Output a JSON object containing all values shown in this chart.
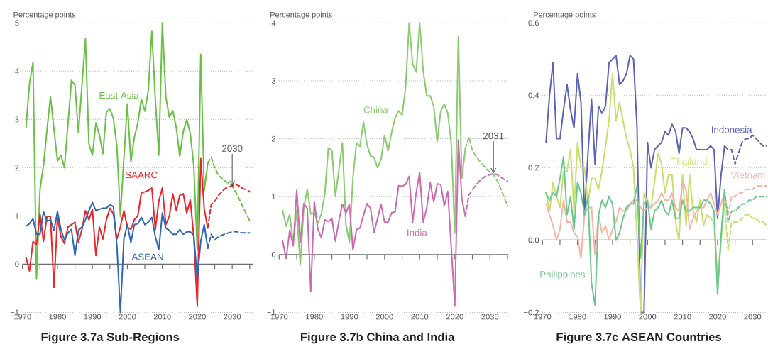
{
  "chart_data": [
    {
      "type": "line",
      "title": "Figure 3.7a Sub-Regions",
      "ylabel": "Percentage points",
      "xlim": [
        1970,
        2036
      ],
      "ylim": [
        -1,
        5
      ],
      "xticks": [
        1970,
        {
          "value": 1975,
          "label": null
        },
        1980,
        {
          "value": 1985,
          "label": null
        },
        1990,
        {
          "value": 1995,
          "label": null
        },
        2000,
        {
          "value": 2005,
          "label": null
        },
        2010,
        {
          "value": 2015,
          "label": null
        },
        2020,
        {
          "value": 2025,
          "label": null
        },
        2030,
        {
          "value": 2035,
          "label": null
        }
      ],
      "yticks": [
        {
          "value": -1,
          "label": "−1"
        },
        0,
        1,
        2,
        3,
        4,
        5
      ],
      "grid": "y",
      "marker": "none",
      "annotations": [
        {
          "text": "2030",
          "x": 2030,
          "y": 1.62
        }
      ],
      "series": [
        {
          "name": "East Asia",
          "color": "#6abf45",
          "x": [
            1971,
            1972,
            1973,
            1974,
            1975,
            1976,
            1977,
            1978,
            1979,
            1980,
            1981,
            1982,
            1983,
            1984,
            1985,
            1986,
            1987,
            1988,
            1989,
            1990,
            1991,
            1992,
            1993,
            1994,
            1995,
            1996,
            1997,
            1998,
            1999,
            2000,
            2001,
            2002,
            2003,
            2004,
            2005,
            2006,
            2007,
            2008,
            2009,
            2010,
            2011,
            2012,
            2013,
            2014,
            2015,
            2016,
            2017,
            2018,
            2019,
            2020,
            2021,
            2022,
            2023
          ],
          "values": [
            2.83,
            3.74,
            4.18,
            -0.31,
            1.55,
            2.04,
            2.78,
            3.47,
            2.8,
            2.14,
            2.26,
            2.0,
            2.9,
            3.81,
            3.71,
            2.73,
            3.7,
            4.67,
            2.49,
            2.26,
            2.93,
            2.68,
            2.29,
            3.15,
            3.22,
            3.02,
            2.44,
            0.99,
            2.2,
            3.32,
            2.12,
            2.63,
            2.93,
            3.42,
            3.17,
            3.61,
            4.84,
            3.4,
            2.26,
            5.0,
            3.47,
            3.05,
            3.18,
            2.83,
            2.24,
            2.75,
            3.0,
            2.71,
            2.04,
            0.3,
            4.35,
            1.53,
            2.09
          ]
        },
        {
          "color": "#6abf45",
          "line_style": "dashed",
          "x": [
            2023,
            2024,
            2025,
            2026,
            2027,
            2028,
            2029,
            2030,
            2031,
            2032,
            2033,
            2034,
            2035
          ],
          "values": [
            2.09,
            2.22,
            2.0,
            1.85,
            1.78,
            1.72,
            1.68,
            1.62,
            1.5,
            1.35,
            1.2,
            1.05,
            0.9
          ]
        },
        {
          "name": "SAARC",
          "color": "#e8262a",
          "x": [
            1971,
            1972,
            1973,
            1974,
            1975,
            1976,
            1977,
            1978,
            1979,
            1980,
            1981,
            1982,
            1983,
            1984,
            1985,
            1986,
            1987,
            1988,
            1989,
            1990,
            1991,
            1992,
            1993,
            1994,
            1995,
            1996,
            1997,
            1998,
            1999,
            2000,
            2001,
            2002,
            2003,
            2004,
            2005,
            2006,
            2007,
            2008,
            2009,
            2010,
            2011,
            2012,
            2013,
            2014,
            2015,
            2016,
            2017,
            2018,
            2019,
            2020,
            2021,
            2022,
            2023
          ],
          "values": [
            0.14,
            -0.14,
            0.47,
            0.4,
            1.04,
            0.47,
            0.99,
            0.99,
            -0.48,
            0.97,
            0.57,
            0.43,
            0.77,
            0.82,
            0.87,
            0.45,
            0.72,
            1.11,
            0.92,
            1.14,
            0.18,
            0.77,
            0.52,
            0.92,
            1.16,
            1.04,
            0.52,
            0.77,
            1.11,
            0.77,
            0.72,
            0.92,
            1.01,
            1.48,
            1.5,
            1.53,
            1.58,
            0.72,
            1.31,
            1.58,
            0.82,
            0.99,
            1.46,
            1.11,
            1.43,
            1.46,
            1.06,
            1.33,
            0.57,
            -0.87,
            2.19,
            1.14,
            0.75
          ]
        },
        {
          "color": "#e8262a",
          "line_style": "dashed",
          "x": [
            2023,
            2024,
            2025,
            2026,
            2027,
            2028,
            2029,
            2030,
            2031,
            2032,
            2033,
            2034,
            2035
          ],
          "values": [
            0.75,
            1.24,
            1.3,
            1.42,
            1.5,
            1.57,
            1.6,
            1.62,
            1.66,
            1.62,
            1.57,
            1.55,
            1.5
          ]
        },
        {
          "name": "ASEAN",
          "color": "#2f67b5",
          "x": [
            1971,
            1972,
            1973,
            1974,
            1975,
            1976,
            1977,
            1978,
            1979,
            1980,
            1981,
            1982,
            1983,
            1984,
            1985,
            1986,
            1987,
            1988,
            1989,
            1990,
            1991,
            1992,
            1993,
            1994,
            1995,
            1996,
            1997,
            1998,
            1999,
            2000,
            2001,
            2002,
            2003,
            2004,
            2005,
            2006,
            2007,
            2008,
            2009,
            2010,
            2011,
            2012,
            2013,
            2014,
            2015,
            2016,
            2017,
            2018,
            2019,
            2020,
            2021,
            2022,
            2023
          ],
          "values": [
            0.79,
            0.84,
            0.94,
            0.62,
            0.62,
            1.09,
            0.89,
            0.92,
            0.7,
            1.09,
            0.72,
            0.5,
            0.65,
            0.72,
            0.18,
            0.7,
            0.77,
            0.92,
            1.11,
            1.28,
            1.11,
            1.14,
            1.16,
            1.16,
            1.24,
            1.19,
            0.38,
            -1.0,
            0.52,
            0.82,
            0.45,
            0.82,
            0.84,
            0.97,
            0.82,
            0.87,
            0.97,
            0.57,
            0.3,
            1.06,
            0.75,
            0.7,
            0.62,
            0.62,
            0.72,
            0.62,
            0.67,
            0.67,
            0.6,
            -0.31,
            0.48,
            0.82,
            0.33
          ]
        },
        {
          "color": "#2f67b5",
          "line_style": "dashed",
          "x": [
            2023,
            2024,
            2025,
            2026,
            2027,
            2028,
            2029,
            2030,
            2031,
            2032,
            2033,
            2034,
            2035
          ],
          "values": [
            0.33,
            0.62,
            0.5,
            0.57,
            0.6,
            0.63,
            0.65,
            0.67,
            0.68,
            0.66,
            0.65,
            0.65,
            0.65
          ]
        }
      ]
    },
    {
      "type": "line",
      "title": "Figure 3.7b China and India",
      "ylabel": "Percentage points",
      "xlim": [
        1970,
        2035
      ],
      "ylim": [
        -1,
        4
      ],
      "xticks": [
        1970,
        {
          "value": 1975,
          "label": null
        },
        1980,
        {
          "value": 1985,
          "label": null
        },
        1990,
        {
          "value": 1995,
          "label": null
        },
        2000,
        {
          "value": 2005,
          "label": null
        },
        2010,
        {
          "value": 2015,
          "label": null
        },
        2020,
        {
          "value": 2025,
          "label": null
        },
        2030,
        {
          "value": 2035,
          "label": null
        }
      ],
      "yticks": [
        {
          "value": -1,
          "label": "−1"
        },
        0,
        1,
        2,
        3,
        4
      ],
      "grid": "y",
      "marker": "none",
      "annotations": [
        {
          "text": "2031",
          "x": 2031,
          "y": 1.4
        }
      ],
      "series": [
        {
          "name": "China",
          "color": "#8acb6f",
          "x": [
            1971,
            1972,
            1973,
            1974,
            1975,
            1976,
            1977,
            1978,
            1979,
            1980,
            1981,
            1982,
            1983,
            1984,
            1985,
            1986,
            1987,
            1988,
            1989,
            1990,
            1991,
            1992,
            1993,
            1994,
            1995,
            1996,
            1997,
            1998,
            1999,
            2000,
            2001,
            2002,
            2003,
            2004,
            2005,
            2006,
            2007,
            2008,
            2009,
            2010,
            2011,
            2012,
            2013,
            2014,
            2015,
            2016,
            2017,
            2018,
            2019,
            2020,
            2021,
            2022,
            2023
          ],
          "values": [
            0.76,
            0.49,
            0.69,
            0.2,
            0.76,
            -0.18,
            0.8,
            1.13,
            0.7,
            0.72,
            0.54,
            0.7,
            1.05,
            1.84,
            1.8,
            1.0,
            1.46,
            1.93,
            0.52,
            0.21,
            1.33,
            1.93,
            1.87,
            2.29,
            1.9,
            1.7,
            1.68,
            1.5,
            1.64,
            2.06,
            1.79,
            2.11,
            2.36,
            2.48,
            2.41,
            2.89,
            4.0,
            3.29,
            3.15,
            4.0,
            3.17,
            2.74,
            2.74,
            2.56,
            1.95,
            2.48,
            2.6,
            2.44,
            1.9,
            0.37,
            3.76,
            1.31,
            1.83
          ]
        },
        {
          "color": "#8acb6f",
          "line_style": "dashed",
          "x": [
            2023,
            2024,
            2025,
            2026,
            2027,
            2028,
            2029,
            2030,
            2031,
            2032,
            2033,
            2034,
            2035
          ],
          "values": [
            1.83,
            2.03,
            1.8,
            1.7,
            1.62,
            1.55,
            1.48,
            1.42,
            1.38,
            1.28,
            1.15,
            1.0,
            0.84
          ]
        },
        {
          "name": "India",
          "color": "#cc6ab0",
          "x": [
            1971,
            1972,
            1973,
            1974,
            1975,
            1976,
            1977,
            1978,
            1979,
            1980,
            1981,
            1982,
            1983,
            1984,
            1985,
            1986,
            1987,
            1988,
            1989,
            1990,
            1991,
            1992,
            1993,
            1994,
            1995,
            1996,
            1997,
            1998,
            1999,
            2000,
            2001,
            2002,
            2003,
            2004,
            2005,
            2006,
            2007,
            2008,
            2009,
            2010,
            2011,
            2012,
            2013,
            2014,
            2015,
            2016,
            2017,
            2018,
            2019,
            2020,
            2021,
            2022,
            2023
          ],
          "values": [
            0.23,
            -0.07,
            0.42,
            0.15,
            1.11,
            0.21,
            0.88,
            0.8,
            -0.64,
            0.91,
            0.44,
            0.29,
            0.6,
            0.57,
            0.62,
            0.23,
            0.58,
            0.87,
            0.72,
            0.87,
            0.08,
            0.43,
            0.46,
            0.68,
            0.88,
            0.8,
            0.38,
            0.62,
            0.87,
            0.56,
            0.56,
            0.72,
            0.74,
            1.19,
            1.18,
            1.21,
            1.35,
            0.56,
            1.07,
            1.41,
            0.56,
            0.8,
            1.24,
            0.91,
            1.22,
            1.21,
            0.84,
            1.09,
            0.11,
            -0.89,
            1.98,
            0.97,
            0.66
          ]
        },
        {
          "color": "#cc6ab0",
          "line_style": "dashed",
          "x": [
            2023,
            2024,
            2025,
            2026,
            2027,
            2028,
            2029,
            2030,
            2031,
            2032,
            2033,
            2034,
            2035
          ],
          "values": [
            0.66,
            1.03,
            1.12,
            1.2,
            1.27,
            1.32,
            1.36,
            1.38,
            1.4,
            1.38,
            1.34,
            1.3,
            1.26
          ]
        }
      ]
    },
    {
      "type": "line",
      "title": "Figure 3.7c ASEAN Countries",
      "ylabel": "Percentage points",
      "xlim": [
        1970,
        2034
      ],
      "ylim": [
        -0.2,
        0.6
      ],
      "xticks": [
        1970,
        {
          "value": 1975,
          "label": null
        },
        1980,
        {
          "value": 1985,
          "label": null
        },
        1990,
        {
          "value": 1995,
          "label": null
        },
        2000,
        {
          "value": 2005,
          "label": null
        },
        2010,
        {
          "value": 2015,
          "label": null
        },
        2020,
        {
          "value": 2025,
          "label": null
        },
        2030
      ],
      "yticks": [
        {
          "value": -0.2,
          "label": "−0.2"
        },
        {
          "value": 0,
          "label": "0.0"
        },
        0.2,
        0.4,
        0.6
      ],
      "grid": "y",
      "marker": "none",
      "series": [
        {
          "name": "Indonesia",
          "color": "#5c62b5",
          "x": [
            1971,
            1972,
            1973,
            1974,
            1975,
            1976,
            1977,
            1978,
            1979,
            1980,
            1981,
            1982,
            1983,
            1984,
            1985,
            1986,
            1987,
            1988,
            1989,
            1990,
            1991,
            1992,
            1993,
            1994,
            1995,
            1996,
            1997,
            1998,
            1999,
            2000,
            2001,
            2002,
            2003,
            2004,
            2005,
            2006,
            2007,
            2008,
            2009,
            2010,
            2011,
            2012,
            2013,
            2014,
            2015,
            2016,
            2017,
            2018,
            2019,
            2020,
            2021,
            2022
          ],
          "values": [
            0.27,
            0.4,
            0.49,
            0.28,
            0.28,
            0.36,
            0.43,
            0.36,
            0.31,
            0.46,
            0.38,
            0.07,
            0.24,
            0.39,
            0.21,
            0.37,
            0.35,
            0.37,
            0.49,
            0.5,
            0.51,
            0.43,
            0.44,
            0.46,
            0.51,
            0.5,
            0.31,
            -0.2,
            -0.2,
            0.27,
            0.2,
            0.25,
            0.26,
            0.27,
            0.3,
            0.29,
            0.32,
            0.3,
            0.24,
            0.31,
            0.31,
            0.3,
            0.28,
            0.25,
            0.25,
            0.25,
            0.25,
            0.26,
            0.25,
            0.06,
            0.18,
            0.26
          ]
        },
        {
          "color": "#5c62b5",
          "line_style": "dashed",
          "x": [
            2022,
            2023,
            2024,
            2025,
            2026,
            2027,
            2028,
            2029,
            2030,
            2031,
            2032,
            2033,
            2034
          ],
          "values": [
            0.26,
            0.25,
            0.25,
            0.21,
            0.24,
            0.27,
            0.28,
            0.28,
            0.29,
            0.28,
            0.27,
            0.26,
            0.26
          ]
        },
        {
          "name": "Thailand",
          "color": "#c9de6e",
          "x": [
            1971,
            1972,
            1973,
            1974,
            1975,
            1976,
            1977,
            1978,
            1979,
            1980,
            1981,
            1982,
            1983,
            1984,
            1985,
            1986,
            1987,
            1988,
            1989,
            1990,
            1991,
            1992,
            1993,
            1994,
            1995,
            1996,
            1997,
            1998,
            1999,
            2000,
            2001,
            2002,
            2003,
            2004,
            2005,
            2006,
            2007,
            2008,
            2009,
            2010,
            2011,
            2012,
            2013,
            2014,
            2015,
            2016,
            2017,
            2018,
            2019,
            2020,
            2021,
            2022
          ],
          "values": [
            0.13,
            0.08,
            0.16,
            0.12,
            0.09,
            0.19,
            0.19,
            0.25,
            0.08,
            0.27,
            0.2,
            0.2,
            0.1,
            0.17,
            0.17,
            0.14,
            0.19,
            0.26,
            0.33,
            0.46,
            0.33,
            0.38,
            0.33,
            0.28,
            0.25,
            0.2,
            0.01,
            -0.2,
            0.13,
            0.1,
            0.09,
            0.16,
            0.24,
            0.21,
            0.13,
            0.18,
            0.18,
            0.05,
            0.0,
            0.18,
            0.04,
            0.18,
            0.08,
            0.05,
            0.11,
            0.04,
            0.07,
            0.06,
            0.05,
            -0.11,
            0.0,
            0.1
          ]
        },
        {
          "color": "#c9de6e",
          "line_style": "dashed",
          "x": [
            2022,
            2023,
            2024,
            2025,
            2026,
            2027,
            2028,
            2029,
            2030,
            2031,
            2032,
            2033,
            2034
          ],
          "values": [
            0.1,
            -0.03,
            0.05,
            0.05,
            0.05,
            0.06,
            0.07,
            0.07,
            0.06,
            0.06,
            0.05,
            0.05,
            0.04
          ]
        },
        {
          "name": "Vietnam",
          "color": "#f5b5a5",
          "x": [
            1971,
            1972,
            1973,
            1974,
            1975,
            1976,
            1977,
            1978,
            1979,
            1980,
            1981,
            1982,
            1983,
            1984,
            1985,
            1986,
            1987,
            1988,
            1989,
            1990,
            1991,
            1992,
            1993,
            1994,
            1995,
            1996,
            1997,
            1998,
            1999,
            2000,
            2001,
            2002,
            2003,
            2004,
            2005,
            2006,
            2007,
            2008,
            2009,
            2010,
            2011,
            2012,
            2013,
            2014,
            2015,
            2016,
            2017,
            2018,
            2019,
            2020,
            2021,
            2022
          ],
          "values": [
            0.1,
            0.07,
            0.04,
            0.0,
            0.03,
            0.11,
            0.05,
            0.05,
            0.02,
            0.01,
            -0.05,
            0.07,
            0.09,
            0.09,
            -0.04,
            0.07,
            0.02,
            0.04,
            0.0,
            0.03,
            0.05,
            0.09,
            0.08,
            0.08,
            0.1,
            0.11,
            0.11,
            0.09,
            0.08,
            0.09,
            0.09,
            0.1,
            0.11,
            0.13,
            0.11,
            0.11,
            0.13,
            0.09,
            0.08,
            0.16,
            0.14,
            0.03,
            0.06,
            0.08,
            0.09,
            0.09,
            0.11,
            0.13,
            0.1,
            0.07,
            0.1,
            0.13
          ]
        },
        {
          "color": "#f5b5a5",
          "line_style": "dashed",
          "x": [
            2022,
            2023,
            2024,
            2025,
            2026,
            2027,
            2028,
            2029,
            2030,
            2031,
            2032,
            2033,
            2034
          ],
          "values": [
            0.13,
            0.07,
            0.12,
            0.12,
            0.13,
            0.13,
            0.14,
            0.14,
            0.14,
            0.15,
            0.15,
            0.15,
            0.15
          ]
        },
        {
          "name": "Philippines",
          "color": "#6cc78a",
          "x": [
            1971,
            1972,
            1973,
            1974,
            1975,
            1976,
            1977,
            1978,
            1979,
            1980,
            1981,
            1982,
            1983,
            1984,
            1985,
            1986,
            1987,
            1988,
            1989,
            1990,
            1991,
            1992,
            1993,
            1994,
            1995,
            1996,
            1997,
            1998,
            1999,
            2000,
            2001,
            2002,
            2003,
            2004,
            2005,
            2006,
            2007,
            2008,
            2009,
            2010,
            2011,
            2012,
            2013,
            2014,
            2015,
            2016,
            2017,
            2018,
            2019,
            2020,
            2021,
            2022
          ],
          "values": [
            0.13,
            0.11,
            0.13,
            0.12,
            0.17,
            0.23,
            0.07,
            0.12,
            0.03,
            0.16,
            0.13,
            0.07,
            0.12,
            -0.12,
            -0.18,
            0.07,
            0.11,
            0.09,
            0.12,
            0.1,
            0.0,
            0.02,
            0.06,
            0.09,
            0.1,
            0.1,
            0.15,
            -0.05,
            0.1,
            0.11,
            0.03,
            0.08,
            0.09,
            0.11,
            0.08,
            0.07,
            0.11,
            0.06,
            0.06,
            0.11,
            0.08,
            0.08,
            0.09,
            0.09,
            0.09,
            0.11,
            0.11,
            0.1,
            0.08,
            -0.15,
            0.01,
            0.14
          ]
        },
        {
          "color": "#6cc78a",
          "line_style": "dashed",
          "x": [
            2022,
            2023,
            2024,
            2025,
            2026,
            2027,
            2028,
            2029,
            2030,
            2031,
            2032,
            2033,
            2034
          ],
          "values": [
            0.14,
            0.05,
            0.08,
            0.08,
            0.09,
            0.1,
            0.1,
            0.11,
            0.11,
            0.12,
            0.12,
            0.12,
            0.12
          ]
        }
      ]
    }
  ]
}
